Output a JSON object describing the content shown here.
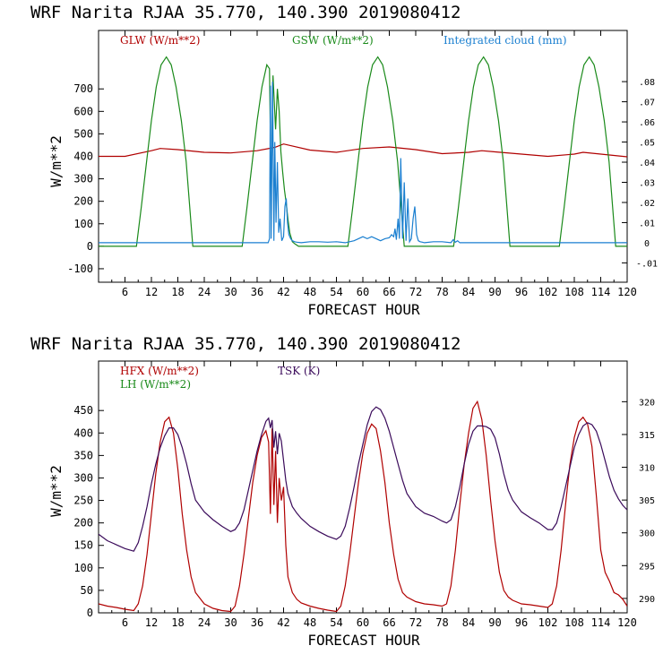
{
  "chart_data": [
    {
      "type": "line",
      "title": "WRF  Narita RJAA   35.770, 140.390  2019080412",
      "xlabel": "FORECAST HOUR",
      "ylabel": "W/m**2",
      "xlim": [
        0,
        120
      ],
      "ylim": [
        -160,
        960
      ],
      "y2lim": [
        -0.0196,
        0.1054
      ],
      "x_ticks": [
        "6",
        "12",
        "18",
        "24",
        "30",
        "36",
        "42",
        "48",
        "54",
        "60",
        "66",
        "72",
        "78",
        "84",
        "90",
        "96",
        "102",
        "108",
        "114",
        "120"
      ],
      "y_ticks": [
        "-100",
        "0",
        "100",
        "200",
        "300",
        "400",
        "500",
        "600",
        "700"
      ],
      "y2_ticks": [
        "-.01",
        "0",
        ".01",
        ".02",
        ".03",
        ".04",
        ".05",
        ".06",
        ".07",
        ".08"
      ],
      "series": [
        {
          "name": "GLW (W/m**2)",
          "color": "#b00000",
          "axis": "left",
          "x": [
            0,
            6,
            12,
            14,
            18,
            24,
            30,
            36,
            40,
            42,
            48,
            54,
            60,
            66,
            72,
            78,
            84,
            87,
            90,
            96,
            102,
            108,
            110,
            114,
            120
          ],
          "y": [
            400,
            400,
            425,
            435,
            430,
            418,
            415,
            425,
            440,
            455,
            428,
            418,
            435,
            442,
            430,
            412,
            418,
            425,
            420,
            410,
            400,
            410,
            418,
            410,
            398
          ]
        },
        {
          "name": "GSW (W/m**2)",
          "color": "#1a8a1a",
          "axis": "left",
          "x": [
            0,
            8.6,
            9.7,
            10.9,
            12.0,
            13.1,
            14.2,
            15.4,
            16.5,
            17.6,
            18.8,
            19.9,
            21.4,
            32.6,
            33.7,
            34.9,
            36.0,
            37.1,
            38.2,
            38.8,
            39.2,
            39.6,
            40.2,
            40.6,
            41.0,
            41.4,
            41.8,
            42.2,
            42.6,
            43.0,
            43.4,
            44.0,
            44.6,
            45.4,
            56.6,
            57.7,
            58.9,
            60.0,
            61.1,
            62.2,
            63.4,
            64.5,
            65.6,
            66.8,
            67.9,
            69.4,
            80.6,
            81.7,
            82.9,
            84.0,
            85.1,
            86.2,
            87.4,
            88.5,
            89.6,
            90.8,
            91.9,
            93.4,
            104.6,
            105.7,
            106.9,
            108.0,
            109.1,
            110.2,
            111.4,
            112.5,
            113.6,
            114.8,
            115.9,
            117.4,
            120
          ],
          "y": [
            0,
            0,
            174,
            376,
            559,
            709,
            807,
            842,
            807,
            709,
            559,
            376,
            0,
            0,
            174,
            376,
            559,
            709,
            807,
            790,
            200,
            760,
            520,
            700,
            600,
            420,
            330,
            250,
            190,
            120,
            60,
            20,
            10,
            0,
            0,
            174,
            376,
            559,
            709,
            807,
            842,
            807,
            709,
            559,
            376,
            0,
            0,
            174,
            376,
            559,
            709,
            807,
            842,
            807,
            709,
            559,
            376,
            0,
            0,
            174,
            376,
            559,
            709,
            807,
            842,
            807,
            709,
            559,
            376,
            0,
            0
          ]
        },
        {
          "name": "Integrated cloud (mm)",
          "color": "#1a7fd0",
          "axis": "right",
          "x": [
            0,
            38.5,
            38.8,
            39.0,
            39.2,
            39.5,
            39.8,
            40.0,
            40.3,
            40.6,
            40.9,
            41.2,
            41.6,
            42.0,
            42.3,
            42.6,
            42.9,
            43.2,
            43.6,
            44.0,
            44.5,
            45.0,
            46.0,
            48,
            50,
            52,
            54,
            56,
            58,
            59,
            60,
            61,
            62,
            63,
            64,
            65,
            66,
            66.5,
            67,
            67.3,
            67.6,
            68,
            68.3,
            68.6,
            69,
            69.4,
            69.8,
            70.2,
            70.6,
            71,
            71.4,
            71.8,
            72.2,
            72.6,
            73,
            73.5,
            74,
            76,
            78,
            80,
            80.5,
            81,
            81.5,
            82,
            83,
            120
          ],
          "y": [
            0,
            0,
            0.002,
            0.078,
            0.002,
            0.08,
            0.001,
            0.05,
            0.01,
            0.04,
            0.005,
            0.012,
            0.001,
            0.003,
            0.018,
            0.022,
            0.01,
            0.004,
            0.002,
            0.001,
            0.0005,
            0.0003,
            0,
            0.0005,
            0.0005,
            0.0003,
            0.0005,
            0,
            0.001,
            0.002,
            0.003,
            0.002,
            0.003,
            0.002,
            0.001,
            0.002,
            0.0025,
            0.004,
            0.003,
            0.007,
            0.0015,
            0.012,
            0.002,
            0.042,
            0.002,
            0.03,
            0.001,
            0.022,
            0.0005,
            0.002,
            0.012,
            0.018,
            0.004,
            0.001,
            0.0005,
            0.0003,
            0,
            0.0005,
            0.0005,
            0,
            0.0015,
            0.0003,
            0.001,
            0,
            0,
            0
          ]
        }
      ]
    },
    {
      "type": "line",
      "title": "WRF  Narita RJAA   35.770, 140.390  2019080412",
      "xlabel": "FORECAST HOUR",
      "ylabel": "W/m**2",
      "xlim": [
        0,
        120
      ],
      "ylim": [
        0,
        560
      ],
      "y2lim": [
        287.8,
        326.2
      ],
      "x_ticks": [
        "6",
        "12",
        "18",
        "24",
        "30",
        "36",
        "42",
        "48",
        "54",
        "60",
        "66",
        "72",
        "78",
        "84",
        "90",
        "96",
        "102",
        "108",
        "114",
        "120"
      ],
      "y_ticks": [
        "0",
        "50",
        "100",
        "150",
        "200",
        "250",
        "300",
        "350",
        "400",
        "450"
      ],
      "y2_ticks": [
        "290",
        "295",
        "300",
        "305",
        "310",
        "315",
        "320"
      ],
      "series": [
        {
          "name": "HFX (W/m**2)",
          "color": "#b00000",
          "axis": "left",
          "x": [
            0,
            2,
            4,
            6,
            8,
            9,
            10,
            11,
            12,
            13,
            14,
            15,
            16,
            17,
            18,
            19,
            20,
            21,
            22,
            24,
            26,
            28,
            30,
            31,
            32,
            33,
            34,
            35,
            36,
            37,
            38,
            38.6,
            39.0,
            39.4,
            39.8,
            40.2,
            40.6,
            41.0,
            41.5,
            42.0,
            42.5,
            43.0,
            44,
            45,
            46,
            48,
            50,
            52,
            54,
            55,
            56,
            57,
            58,
            59,
            60,
            61,
            62,
            63,
            64,
            65,
            66,
            67,
            68,
            69,
            70,
            72,
            74,
            76,
            78,
            79,
            80,
            81,
            82,
            83,
            84,
            85,
            86,
            87,
            88,
            89,
            90,
            91,
            92,
            93,
            94,
            96,
            98,
            100,
            102,
            103,
            104,
            105,
            106,
            107,
            108,
            109,
            110,
            111,
            112,
            113,
            114,
            115,
            116,
            117,
            118,
            119,
            120
          ],
          "y": [
            20,
            15,
            12,
            8,
            5,
            20,
            60,
            130,
            220,
            310,
            380,
            425,
            435,
            400,
            320,
            220,
            140,
            80,
            45,
            20,
            10,
            5,
            3,
            15,
            60,
            130,
            210,
            290,
            350,
            390,
            405,
            380,
            220,
            410,
            240,
            360,
            200,
            300,
            250,
            280,
            150,
            80,
            45,
            30,
            22,
            15,
            10,
            6,
            3,
            15,
            60,
            130,
            210,
            290,
            355,
            400,
            420,
            410,
            360,
            290,
            200,
            130,
            75,
            45,
            35,
            25,
            20,
            18,
            15,
            20,
            60,
            140,
            240,
            330,
            400,
            455,
            470,
            430,
            350,
            250,
            160,
            90,
            50,
            35,
            28,
            20,
            18,
            15,
            12,
            20,
            60,
            140,
            240,
            330,
            390,
            425,
            435,
            420,
            370,
            260,
            140,
            90,
            70,
            45,
            40,
            30,
            15
          ]
        },
        {
          "name": "LH  (W/m**2)",
          "color": "#1a8a1a",
          "axis": "left",
          "x": [],
          "y": []
        },
        {
          "name": "TSK (K)",
          "color": "#3a0a5a",
          "axis": "right",
          "x": [
            0,
            2,
            4,
            6,
            8,
            9,
            10,
            11,
            12,
            13,
            14,
            15,
            16,
            17,
            18,
            19,
            20,
            21,
            22,
            24,
            26,
            28,
            30,
            31,
            32,
            33,
            34,
            35,
            36,
            37,
            38,
            38.6,
            39.0,
            39.4,
            39.8,
            40.2,
            40.6,
            41.0,
            41.5,
            42.0,
            42.5,
            43.0,
            44,
            45,
            46,
            48,
            50,
            52,
            54,
            55,
            56,
            57,
            58,
            59,
            60,
            61,
            62,
            63,
            64,
            65,
            66,
            67,
            68,
            69,
            70,
            72,
            74,
            76,
            78,
            79,
            80,
            81,
            82,
            83,
            84,
            85,
            86,
            87,
            88,
            89,
            90,
            91,
            92,
            93,
            94,
            96,
            98,
            100,
            102,
            103,
            104,
            105,
            106,
            107,
            108,
            109,
            110,
            111,
            112,
            113,
            114,
            115,
            116,
            117,
            118,
            119,
            120
          ],
          "y": [
            299.8,
            298.8,
            298.2,
            297.6,
            297.2,
            298.5,
            301,
            304,
            307.5,
            310.5,
            313,
            314.8,
            316,
            316,
            315,
            313,
            310.5,
            307.5,
            305,
            303.2,
            302,
            301,
            300.2,
            300.5,
            301.5,
            303.5,
            306.5,
            309.5,
            312.5,
            315,
            317,
            317.5,
            316,
            317.2,
            313,
            315.5,
            312,
            315.2,
            314,
            311,
            308,
            306,
            304,
            303,
            302.2,
            301,
            300.2,
            299.5,
            299,
            299.5,
            301,
            303.8,
            307,
            310.5,
            313.5,
            316.5,
            318.5,
            319.2,
            318.8,
            317.5,
            315.5,
            313,
            310.5,
            308,
            306,
            304,
            303,
            302.5,
            301.8,
            301.5,
            302,
            304,
            307,
            310.5,
            313.5,
            315.5,
            316.3,
            316.3,
            316.2,
            315.8,
            314.5,
            312,
            309,
            306.5,
            305,
            303.2,
            302.3,
            301.5,
            300.5,
            300.5,
            301.5,
            304,
            307,
            310,
            313,
            315,
            316.3,
            316.8,
            316.5,
            315.5,
            313.5,
            311,
            308.5,
            306.5,
            305.2,
            304.2,
            303.5
          ]
        }
      ]
    }
  ],
  "legend_top": {
    "glw": "GLW (W/m**2)",
    "gsw": "GSW (W/m**2)",
    "cloud": "Integrated cloud (mm)"
  },
  "legend_bottom": {
    "hfx": "HFX (W/m**2)",
    "lh": "LH  (W/m**2)",
    "tsk": "TSK (K)"
  }
}
